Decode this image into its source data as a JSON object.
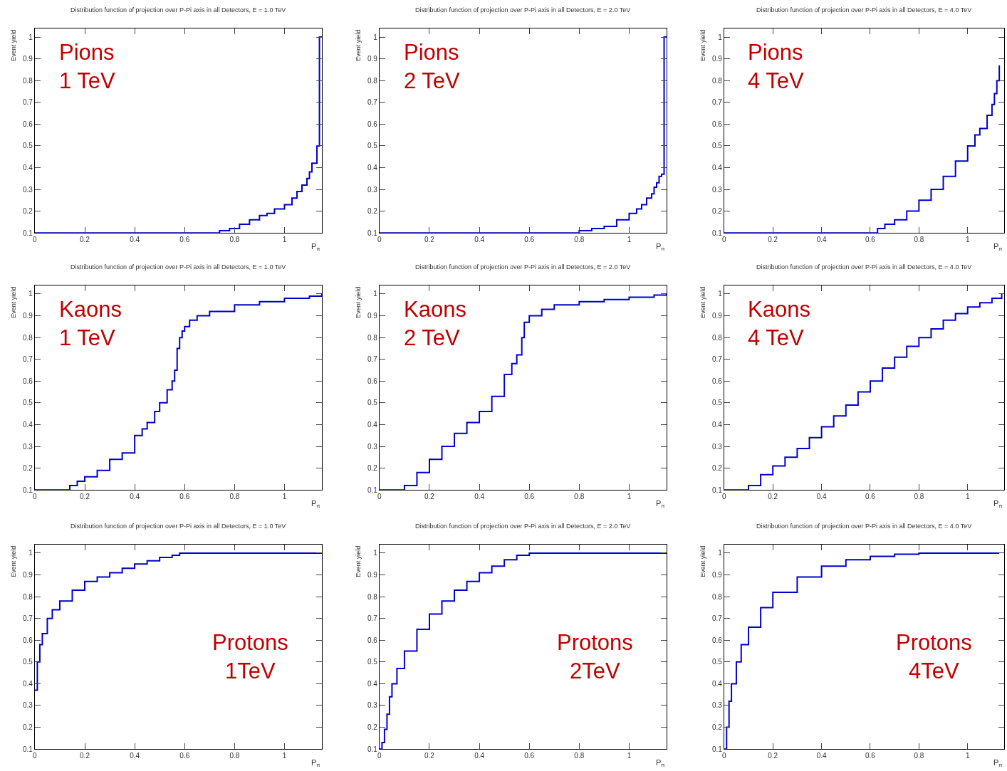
{
  "chart_data": [
    {
      "type": "step",
      "title": "Distribution function of projection over P-Pi axis in all Detectors, E = 1.0 TeV",
      "xlabel": "P$_{π}$",
      "ylabel": "Event yield",
      "annotations": [
        "Pions\n1 TeV"
      ],
      "xlim": [
        0,
        1.15
      ],
      "ylim": [
        0.1,
        1.04
      ],
      "xticks": [
        0,
        0.2,
        0.4,
        0.6,
        0.8,
        1
      ],
      "yticks": [
        0.1,
        0.2,
        0.3,
        0.4,
        0.5,
        0.6,
        0.7,
        0.8,
        0.9,
        1
      ],
      "series": [
        {
          "color": "#0000cc",
          "x": [
            0,
            0.74,
            0.78,
            0.82,
            0.86,
            0.9,
            0.93,
            0.96,
            1.0,
            1.03,
            1.05,
            1.07,
            1.09,
            1.1,
            1.11,
            1.12,
            1.13,
            1.14,
            1.15
          ],
          "values": [
            0.1,
            0.11,
            0.12,
            0.14,
            0.16,
            0.18,
            0.19,
            0.21,
            0.23,
            0.26,
            0.29,
            0.32,
            0.35,
            0.38,
            0.42,
            0.42,
            0.5,
            1.0,
            1.0
          ]
        }
      ]
    },
    {
      "type": "step",
      "title": "Distribution function of projection over P-Pi axis in all Detectors, E = 2.0 TeV",
      "xlabel": "P$_{π}$",
      "ylabel": "Event yield",
      "annotations": [
        "Pions\n2 TeV"
      ],
      "xlim": [
        0,
        1.15
      ],
      "ylim": [
        0.1,
        1.04
      ],
      "xticks": [
        0,
        0.2,
        0.4,
        0.6,
        0.8,
        1
      ],
      "yticks": [
        0.1,
        0.2,
        0.3,
        0.4,
        0.5,
        0.6,
        0.7,
        0.8,
        0.9,
        1
      ],
      "series": [
        {
          "color": "#0000cc",
          "x": [
            0,
            0.8,
            0.85,
            0.9,
            0.95,
            1.0,
            1.03,
            1.05,
            1.07,
            1.09,
            1.1,
            1.11,
            1.12,
            1.13,
            1.14,
            1.15
          ],
          "values": [
            0.1,
            0.11,
            0.12,
            0.13,
            0.16,
            0.19,
            0.21,
            0.23,
            0.26,
            0.28,
            0.31,
            0.33,
            0.36,
            0.37,
            1.0,
            1.0
          ]
        }
      ]
    },
    {
      "type": "step",
      "title": "Distribution function of projection over P-Pi axis in all Detectors, E = 4.0 TeV",
      "xlabel": "P$_{π}$",
      "ylabel": "Event yield",
      "annotations": [
        "Pions\n4 TeV"
      ],
      "xlim": [
        0,
        1.15
      ],
      "ylim": [
        0.1,
        1.04
      ],
      "xticks": [
        0,
        0.2,
        0.4,
        0.6,
        0.8,
        1
      ],
      "yticks": [
        0.1,
        0.2,
        0.3,
        0.4,
        0.5,
        0.6,
        0.7,
        0.8,
        0.9,
        1
      ],
      "series": [
        {
          "color": "#0000cc",
          "x": [
            0,
            0.63,
            0.66,
            0.7,
            0.75,
            0.8,
            0.85,
            0.9,
            0.95,
            1.0,
            1.03,
            1.05,
            1.08,
            1.1,
            1.11,
            1.12,
            1.13
          ],
          "values": [
            0.1,
            0.12,
            0.14,
            0.16,
            0.2,
            0.25,
            0.3,
            0.36,
            0.43,
            0.5,
            0.55,
            0.58,
            0.64,
            0.69,
            0.74,
            0.8,
            0.87
          ]
        }
      ]
    },
    {
      "type": "step",
      "title": "Distribution function of projection over P-Pi axis in all Detectors, E = 1.0 TeV",
      "xlabel": "P$_{π}$",
      "ylabel": "Event yield",
      "annotations": [
        "Kaons\n1 TeV"
      ],
      "xlim": [
        0,
        1.15
      ],
      "ylim": [
        0.1,
        1.04
      ],
      "xticks": [
        0,
        0.2,
        0.4,
        0.6,
        0.8,
        1
      ],
      "yticks": [
        0.1,
        0.2,
        0.3,
        0.4,
        0.5,
        0.6,
        0.7,
        0.8,
        0.9,
        1
      ],
      "series": [
        {
          "color": "#0000cc",
          "x": [
            0,
            0.14,
            0.17,
            0.2,
            0.25,
            0.3,
            0.35,
            0.4,
            0.43,
            0.45,
            0.48,
            0.5,
            0.53,
            0.55,
            0.56,
            0.57,
            0.58,
            0.59,
            0.6,
            0.62,
            0.65,
            0.7,
            0.8,
            0.9,
            1.0,
            1.1,
            1.15
          ],
          "values": [
            0.1,
            0.12,
            0.14,
            0.16,
            0.19,
            0.24,
            0.27,
            0.35,
            0.38,
            0.41,
            0.46,
            0.5,
            0.56,
            0.6,
            0.65,
            0.75,
            0.8,
            0.83,
            0.85,
            0.88,
            0.9,
            0.92,
            0.95,
            0.965,
            0.98,
            0.99,
            1.0
          ]
        }
      ]
    },
    {
      "type": "step",
      "title": "Distribution function of projection over P-Pi axis in all Detectors, E = 2.0 TeV",
      "xlabel": "P$_{π}$",
      "ylabel": "Event yield",
      "annotations": [
        "Kaons\n2 TeV"
      ],
      "xlim": [
        0,
        1.15
      ],
      "ylim": [
        0.1,
        1.04
      ],
      "xticks": [
        0,
        0.2,
        0.4,
        0.6,
        0.8,
        1
      ],
      "yticks": [
        0.1,
        0.2,
        0.3,
        0.4,
        0.5,
        0.6,
        0.7,
        0.8,
        0.9,
        1
      ],
      "series": [
        {
          "color": "#0000cc",
          "x": [
            0,
            0.1,
            0.15,
            0.2,
            0.25,
            0.3,
            0.35,
            0.4,
            0.45,
            0.5,
            0.53,
            0.55,
            0.57,
            0.58,
            0.6,
            0.65,
            0.7,
            0.8,
            0.9,
            1.0,
            1.1,
            1.15
          ],
          "values": [
            0.1,
            0.12,
            0.18,
            0.24,
            0.3,
            0.36,
            0.41,
            0.46,
            0.53,
            0.63,
            0.68,
            0.72,
            0.8,
            0.87,
            0.9,
            0.93,
            0.95,
            0.965,
            0.975,
            0.985,
            0.995,
            1.0
          ]
        }
      ]
    },
    {
      "type": "step",
      "title": "Distribution function of projection over P-Pi axis in all Detectors, E = 4.0 TeV",
      "xlabel": "P$_{π}$",
      "ylabel": "Event yield",
      "annotations": [
        "Kaons\n4 TeV"
      ],
      "xlim": [
        0,
        1.15
      ],
      "ylim": [
        0.1,
        1.04
      ],
      "xticks": [
        0,
        0.2,
        0.4,
        0.6,
        0.8,
        1
      ],
      "yticks": [
        0.1,
        0.2,
        0.3,
        0.4,
        0.5,
        0.6,
        0.7,
        0.8,
        0.9,
        1
      ],
      "series": [
        {
          "color": "#0000cc",
          "x": [
            0,
            0.1,
            0.15,
            0.2,
            0.25,
            0.3,
            0.35,
            0.4,
            0.45,
            0.5,
            0.55,
            0.6,
            0.65,
            0.7,
            0.75,
            0.8,
            0.85,
            0.9,
            0.95,
            1.0,
            1.05,
            1.1,
            1.14
          ],
          "values": [
            0.1,
            0.12,
            0.17,
            0.21,
            0.25,
            0.29,
            0.34,
            0.39,
            0.44,
            0.49,
            0.55,
            0.6,
            0.66,
            0.71,
            0.76,
            0.8,
            0.84,
            0.88,
            0.91,
            0.94,
            0.96,
            0.98,
            1.0
          ]
        }
      ]
    },
    {
      "type": "step",
      "title": "Distribution function of projection over P-Pi axis in all Detectors, E = 1.0 TeV",
      "xlabel": "P$_{π}$",
      "ylabel": "Event yield",
      "annotations": [
        "Protons\n1TeV"
      ],
      "xlim": [
        0,
        1.15
      ],
      "ylim": [
        0.1,
        1.04
      ],
      "xticks": [
        0,
        0.2,
        0.4,
        0.6,
        0.8,
        1
      ],
      "yticks": [
        0.1,
        0.2,
        0.3,
        0.4,
        0.5,
        0.6,
        0.7,
        0.8,
        0.9,
        1
      ],
      "series": [
        {
          "color": "#0000cc",
          "x": [
            0,
            0.01,
            0.02,
            0.03,
            0.05,
            0.07,
            0.1,
            0.15,
            0.2,
            0.25,
            0.3,
            0.35,
            0.4,
            0.45,
            0.5,
            0.55,
            0.58,
            0.7,
            0.8,
            0.9,
            1.0,
            1.15
          ],
          "values": [
            0.37,
            0.5,
            0.58,
            0.63,
            0.7,
            0.74,
            0.78,
            0.83,
            0.87,
            0.89,
            0.91,
            0.93,
            0.95,
            0.965,
            0.98,
            0.99,
            1.0,
            1.0,
            1.0,
            1.0,
            1.0,
            1.0
          ]
        }
      ]
    },
    {
      "type": "step",
      "title": "Distribution function of projection over P-Pi axis in all Detectors, E = 2.0 TeV",
      "xlabel": "P$_{π}$",
      "ylabel": "Event yield",
      "annotations": [
        "Protons\n2TeV"
      ],
      "xlim": [
        0,
        1.15
      ],
      "ylim": [
        0.1,
        1.04
      ],
      "xticks": [
        0,
        0.2,
        0.4,
        0.6,
        0.8,
        1
      ],
      "yticks": [
        0.1,
        0.2,
        0.3,
        0.4,
        0.5,
        0.6,
        0.7,
        0.8,
        0.9,
        1
      ],
      "series": [
        {
          "color": "#0000cc",
          "x": [
            0,
            0.01,
            0.02,
            0.03,
            0.04,
            0.05,
            0.07,
            0.1,
            0.15,
            0.2,
            0.25,
            0.3,
            0.35,
            0.4,
            0.45,
            0.5,
            0.55,
            0.6,
            0.8,
            1.0,
            1.15
          ],
          "values": [
            0.1,
            0.13,
            0.19,
            0.26,
            0.34,
            0.4,
            0.47,
            0.55,
            0.65,
            0.72,
            0.78,
            0.83,
            0.87,
            0.91,
            0.94,
            0.97,
            0.99,
            1.0,
            1.0,
            1.0,
            1.0
          ]
        }
      ]
    },
    {
      "type": "step",
      "title": "Distribution function of projection over P-Pi axis in all Detectors, E = 4.0 TeV",
      "xlabel": "P$_{π}$",
      "ylabel": "Event yield",
      "annotations": [
        "Protons\n4TeV"
      ],
      "xlim": [
        0,
        1.15
      ],
      "ylim": [
        0.1,
        1.04
      ],
      "xticks": [
        0,
        0.2,
        0.4,
        0.6,
        0.8,
        1
      ],
      "yticks": [
        0.1,
        0.2,
        0.3,
        0.4,
        0.5,
        0.6,
        0.7,
        0.8,
        0.9,
        1
      ],
      "series": [
        {
          "color": "#0000cc",
          "x": [
            0,
            0.01,
            0.02,
            0.03,
            0.05,
            0.07,
            0.1,
            0.15,
            0.2,
            0.3,
            0.4,
            0.5,
            0.6,
            0.7,
            0.8,
            1.0,
            1.13
          ],
          "values": [
            0.1,
            0.2,
            0.32,
            0.4,
            0.5,
            0.58,
            0.66,
            0.75,
            0.82,
            0.89,
            0.94,
            0.97,
            0.985,
            0.995,
            1.0,
            1.0,
            1.0
          ]
        }
      ]
    }
  ]
}
